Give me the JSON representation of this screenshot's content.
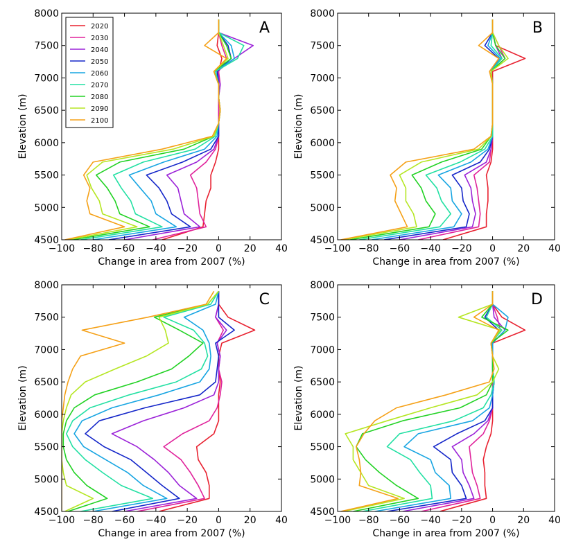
{
  "figure": {
    "x_ticks": [
      -100,
      -80,
      -60,
      -40,
      -20,
      0,
      20,
      40
    ],
    "y_ticks": [
      4500,
      5000,
      5500,
      6000,
      6500,
      7000,
      7500,
      8000
    ]
  },
  "chart_data": [
    {
      "type": "line",
      "panel": "A",
      "xlabel": "Change in area from 2007 (%)",
      "ylabel": "Elevation (m)",
      "xlim": [
        -100,
        40
      ],
      "ylim": [
        4500,
        8000
      ],
      "legend": {
        "position": "top-left",
        "entries": [
          "2020",
          "2030",
          "2040",
          "2050",
          "2060",
          "2070",
          "2080",
          "2090",
          "2100"
        ]
      },
      "y": [
        4500,
        4700,
        4900,
        5100,
        5300,
        5500,
        5700,
        5900,
        6100,
        6300,
        6500,
        6700,
        6900,
        7100,
        7300,
        7500,
        7700,
        7900
      ],
      "series": [
        {
          "name": "2020",
          "color": "#e8202f",
          "values": [
            -36,
            -10,
            -9,
            -8,
            -5,
            -5,
            -2,
            0,
            0,
            0,
            0,
            0,
            0,
            0,
            2,
            -1,
            0,
            0
          ]
        },
        {
          "name": "2030",
          "color": "#e0229b",
          "values": [
            -42,
            -8,
            -12,
            -13,
            -14,
            -18,
            -8,
            -2,
            0,
            0,
            0,
            0,
            1,
            0,
            5,
            2,
            0,
            0
          ]
        },
        {
          "name": "2040",
          "color": "#9b22d8",
          "values": [
            -60,
            -12,
            -22,
            -24,
            -26,
            -33,
            -14,
            -3,
            0,
            0,
            1,
            0,
            1,
            -1,
            10,
            22,
            0,
            0
          ]
        },
        {
          "name": "2050",
          "color": "#1426c9",
          "values": [
            -70,
            -18,
            -30,
            -33,
            -38,
            -46,
            -23,
            -5,
            0,
            0,
            1,
            0,
            0,
            -1,
            8,
            6,
            0,
            0
          ]
        },
        {
          "name": "2060",
          "color": "#17a5e2",
          "values": [
            -80,
            -27,
            -40,
            -43,
            -50,
            -57,
            -35,
            -9,
            -1,
            0,
            1,
            0,
            0,
            -2,
            10,
            8,
            0,
            0
          ]
        },
        {
          "name": "2070",
          "color": "#22e0a3",
          "values": [
            -88,
            -36,
            -53,
            -56,
            -62,
            -67,
            -48,
            -15,
            -2,
            0,
            1,
            0,
            0,
            -2,
            12,
            16,
            0,
            0
          ]
        },
        {
          "name": "2080",
          "color": "#22d224",
          "values": [
            -93,
            -44,
            -63,
            -66,
            -71,
            -78,
            -63,
            -22,
            -3,
            0,
            1,
            0,
            0,
            -3,
            8,
            5,
            0,
            0
          ]
        },
        {
          "name": "2090",
          "color": "#b5e622",
          "values": [
            -96,
            -52,
            -74,
            -76,
            -81,
            -84,
            -74,
            -29,
            -3,
            0,
            1,
            0,
            0,
            -3,
            6,
            3,
            0,
            0
          ]
        },
        {
          "name": "2100",
          "color": "#f5a016",
          "values": [
            -98,
            -60,
            -82,
            -84,
            -82,
            -86,
            -80,
            -36,
            -4,
            0,
            1,
            0,
            0,
            -3,
            5,
            -9,
            0,
            0
          ]
        }
      ]
    },
    {
      "type": "line",
      "panel": "B",
      "xlabel": "Change in area from 2007 (%)",
      "ylabel": "Elevation (m)",
      "xlim": [
        -100,
        40
      ],
      "ylim": [
        4500,
        8000
      ],
      "y": [
        4500,
        4700,
        4900,
        5100,
        5300,
        5500,
        5700,
        5900,
        6100,
        6300,
        6500,
        6700,
        6900,
        7100,
        7300,
        7500,
        7700,
        7900
      ],
      "series": [
        {
          "name": "2020",
          "color": "#e8202f",
          "values": [
            -32,
            -4,
            -4,
            -3,
            -3,
            -4,
            -1,
            0,
            0,
            0,
            0,
            0,
            0,
            0,
            21,
            2,
            0,
            0
          ]
        },
        {
          "name": "2030",
          "color": "#e0229b",
          "values": [
            -48,
            -9,
            -8,
            -9,
            -10,
            -12,
            -2,
            -1,
            0,
            0,
            0,
            0,
            0,
            -1,
            8,
            4,
            0,
            0
          ]
        },
        {
          "name": "2040",
          "color": "#9b22d8",
          "values": [
            -60,
            -13,
            -11,
            -13,
            -14,
            -18,
            -4,
            -1,
            0,
            0,
            0,
            0,
            0,
            -1,
            6,
            2,
            0,
            0
          ]
        },
        {
          "name": "2050",
          "color": "#1426c9",
          "values": [
            -70,
            -17,
            -15,
            -19,
            -20,
            -26,
            -8,
            -2,
            0,
            0,
            0,
            0,
            0,
            -1,
            4,
            -5,
            0,
            0
          ]
        },
        {
          "name": "2060",
          "color": "#17a5e2",
          "values": [
            -78,
            -25,
            -20,
            -26,
            -27,
            -35,
            -14,
            -3,
            0,
            0,
            0,
            0,
            0,
            -1,
            5,
            -3,
            0,
            0
          ]
        },
        {
          "name": "2070",
          "color": "#22e0a3",
          "values": [
            -86,
            -34,
            -27,
            -33,
            -36,
            -43,
            -21,
            -5,
            0,
            0,
            0,
            0,
            0,
            -1,
            6,
            -1,
            0,
            0
          ]
        },
        {
          "name": "2080",
          "color": "#22d224",
          "values": [
            -92,
            -41,
            -37,
            -43,
            -46,
            -52,
            -33,
            -7,
            -1,
            0,
            0,
            0,
            0,
            -1,
            8,
            2,
            0,
            0
          ]
        },
        {
          "name": "2090",
          "color": "#b5e622",
          "values": [
            -96,
            -49,
            -51,
            -56,
            -56,
            -60,
            -46,
            -9,
            -1,
            0,
            0,
            0,
            0,
            -1,
            10,
            4,
            0,
            0
          ]
        },
        {
          "name": "2100",
          "color": "#f5a016",
          "values": [
            -98,
            -55,
            -59,
            -63,
            -62,
            -66,
            -56,
            -12,
            -1,
            0,
            0,
            0,
            0,
            -2,
            4,
            -9,
            0,
            0
          ]
        }
      ]
    },
    {
      "type": "line",
      "panel": "C",
      "xlabel": "Change in area from 2007 (%)",
      "ylabel": "Elevation (m)",
      "xlim": [
        -100,
        40
      ],
      "ylim": [
        4500,
        8000
      ],
      "y": [
        4500,
        4700,
        4900,
        5100,
        5300,
        5500,
        5700,
        5900,
        6100,
        6300,
        6500,
        6700,
        6900,
        7100,
        7300,
        7500,
        7700,
        7900
      ],
      "series": [
        {
          "name": "2020",
          "color": "#e8202f",
          "values": [
            -38,
            -6,
            -6,
            -8,
            -13,
            -14,
            -3,
            0,
            0,
            0,
            1,
            0,
            0,
            2,
            23,
            6,
            0,
            0
          ]
        },
        {
          "name": "2030",
          "color": "#e0229b",
          "values": [
            -52,
            -9,
            -13,
            -18,
            -24,
            -35,
            -23,
            -6,
            -1,
            1,
            2,
            0,
            1,
            -1,
            3,
            -2,
            0,
            0
          ]
        },
        {
          "name": "2040",
          "color": "#9b22d8",
          "values": [
            -60,
            -14,
            -25,
            -32,
            -41,
            -52,
            -68,
            -48,
            -22,
            -3,
            0,
            0,
            1,
            -1,
            5,
            -2,
            0,
            0
          ]
        },
        {
          "name": "2050",
          "color": "#1426c9",
          "values": [
            -68,
            -25,
            -36,
            -46,
            -56,
            -73,
            -85,
            -76,
            -47,
            -12,
            -2,
            -1,
            0,
            -2,
            10,
            0,
            0,
            0
          ]
        },
        {
          "name": "2060",
          "color": "#17a5e2",
          "values": [
            -80,
            -33,
            -48,
            -58,
            -72,
            -86,
            -92,
            -87,
            -68,
            -38,
            -12,
            -6,
            -5,
            -6,
            -10,
            -22,
            -2,
            0
          ]
        },
        {
          "name": "2070",
          "color": "#22e0a3",
          "values": [
            -88,
            -42,
            -62,
            -74,
            -85,
            -93,
            -97,
            -93,
            -82,
            -57,
            -27,
            -11,
            -7,
            -9,
            -16,
            -35,
            -5,
            0
          ]
        },
        {
          "name": "2080",
          "color": "#22d224",
          "values": [
            -96,
            -71,
            -84,
            -92,
            -97,
            -99,
            -99,
            -97,
            -92,
            -79,
            -52,
            -30,
            -19,
            -10,
            -25,
            -41,
            -7,
            0
          ]
        },
        {
          "name": "2090",
          "color": "#b5e622",
          "values": [
            -98,
            -80,
            -97,
            -99,
            -100,
            -100,
            -100,
            -99,
            -97,
            -94,
            -85,
            -66,
            -46,
            -32,
            -34,
            -38,
            -7,
            0
          ]
        },
        {
          "name": "2100",
          "color": "#f5a016",
          "values": [
            -100,
            -100,
            -100,
            -100,
            -100,
            -100,
            -100,
            -100,
            -99,
            -98,
            -96,
            -93,
            -88,
            -60,
            -87,
            -45,
            -8,
            -3
          ]
        }
      ]
    },
    {
      "type": "line",
      "panel": "D",
      "xlabel": "Change in area from 2007 (%)",
      "ylabel": "Elevation (m)",
      "xlim": [
        -100,
        40
      ],
      "ylim": [
        4500,
        8000
      ],
      "y": [
        4500,
        4700,
        4900,
        5100,
        5300,
        5500,
        5700,
        5900,
        6100,
        6300,
        6500,
        6700,
        6900,
        7100,
        7300,
        7500,
        7700,
        7900
      ],
      "series": [
        {
          "name": "2020",
          "color": "#e8202f",
          "values": [
            -34,
            -4,
            -5,
            -5,
            -6,
            -4,
            -1,
            0,
            0,
            0,
            0,
            0,
            0,
            0,
            21,
            6,
            0,
            0
          ]
        },
        {
          "name": "2030",
          "color": "#e0229b",
          "values": [
            -46,
            -8,
            -10,
            -13,
            -14,
            -15,
            -6,
            -2,
            0,
            0,
            0,
            0,
            0,
            0,
            5,
            3,
            0,
            0
          ]
        },
        {
          "name": "2040",
          "color": "#9b22d8",
          "values": [
            -58,
            -12,
            -15,
            -19,
            -20,
            -26,
            -12,
            -3,
            0,
            0,
            1,
            0,
            0,
            0,
            8,
            1,
            0,
            0
          ]
        },
        {
          "name": "2050",
          "color": "#1426c9",
          "values": [
            -68,
            -17,
            -20,
            -26,
            -27,
            -38,
            -23,
            -5,
            0,
            0,
            1,
            0,
            0,
            0,
            4,
            -5,
            0,
            0
          ]
        },
        {
          "name": "2060",
          "color": "#17a5e2",
          "values": [
            -76,
            -27,
            -28,
            -37,
            -40,
            -57,
            -48,
            -13,
            -2,
            0,
            1,
            0,
            0,
            0,
            8,
            10,
            0,
            0
          ]
        },
        {
          "name": "2070",
          "color": "#22e0a3",
          "values": [
            -84,
            -39,
            -40,
            -47,
            -53,
            -68,
            -60,
            -25,
            -6,
            -1,
            1,
            0,
            0,
            -1,
            6,
            -4,
            0,
            0
          ]
        },
        {
          "name": "2080",
          "color": "#22d224",
          "values": [
            -90,
            -48,
            -62,
            -73,
            -82,
            -88,
            -84,
            -58,
            -21,
            -4,
            0,
            0,
            0,
            -1,
            10,
            -7,
            0,
            0
          ]
        },
        {
          "name": "2090",
          "color": "#b5e622",
          "values": [
            -96,
            -57,
            -80,
            -85,
            -90,
            -90,
            -95,
            -68,
            -40,
            -10,
            0,
            4,
            0,
            -1,
            5,
            -22,
            0,
            0
          ]
        },
        {
          "name": "2100",
          "color": "#f5a016",
          "values": [
            -98,
            -61,
            -86,
            -85,
            -86,
            -88,
            -83,
            -76,
            -62,
            -30,
            -2,
            1,
            0,
            -1,
            4,
            -12,
            0,
            0
          ]
        }
      ]
    }
  ]
}
